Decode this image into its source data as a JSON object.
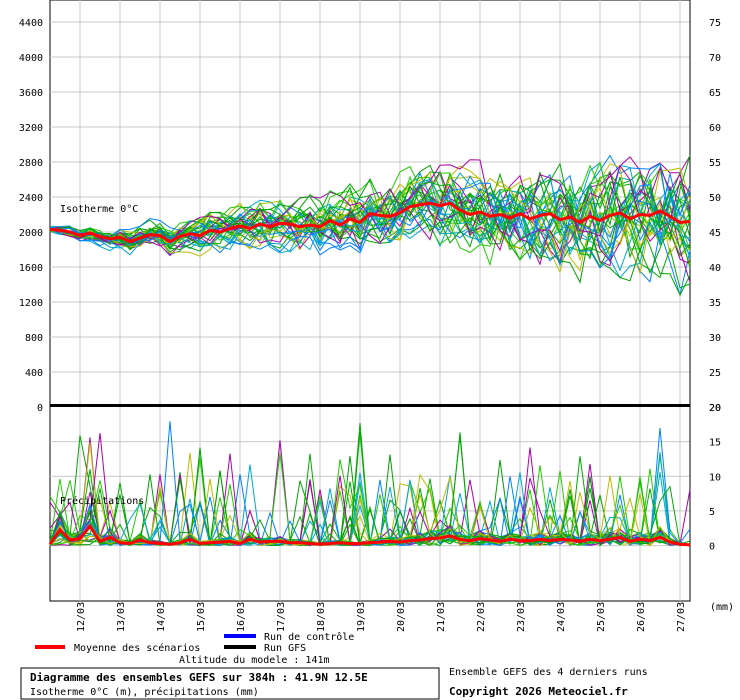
{
  "chart_data": {
    "type": "line",
    "panels": [
      {
        "name": "isotherm",
        "label": "Isotherme 0°C",
        "ylim": [
          0,
          4400
        ],
        "yticks": [
          0,
          400,
          800,
          1200,
          1600,
          2000,
          2400,
          2800,
          3200,
          3600,
          4000,
          4400
        ],
        "right_ticks": [
          20,
          25,
          30,
          35,
          40,
          45,
          50,
          55,
          60,
          65,
          70,
          75
        ],
        "mean_series": {
          "name": "Moyenne des scénarios",
          "color": "#ff0000",
          "x": [
            0,
            6,
            12,
            18,
            24,
            30,
            36,
            42,
            48,
            54,
            60,
            66,
            72,
            78,
            84,
            90,
            96,
            102,
            108,
            114,
            120,
            126,
            132,
            138,
            144,
            150,
            156,
            162,
            168,
            174,
            180,
            186,
            192,
            198,
            204,
            210,
            216,
            222,
            228,
            234,
            240,
            246,
            252,
            258,
            264,
            270,
            276,
            282,
            288,
            294,
            300,
            306,
            312,
            318,
            324,
            330,
            336,
            342,
            348,
            354,
            360,
            366,
            372,
            378,
            384
          ],
          "values": [
            2030,
            2020,
            2000,
            1960,
            1990,
            1950,
            1920,
            1940,
            1890,
            1930,
            1970,
            1960,
            1890,
            1950,
            1980,
            1960,
            2020,
            2000,
            2040,
            2070,
            2040,
            2090,
            2060,
            2100,
            2090,
            2060,
            2080,
            2060,
            2130,
            2080,
            2150,
            2110,
            2210,
            2190,
            2180,
            2220,
            2290,
            2310,
            2330,
            2300,
            2330,
            2250,
            2200,
            2230,
            2180,
            2200,
            2160,
            2210,
            2150,
            2190,
            2210,
            2140,
            2170,
            2110,
            2180,
            2130,
            2190,
            2220,
            2150,
            2200,
            2190,
            2240,
            2180,
            2110,
            2120
          ]
        }
      },
      {
        "name": "precipitation",
        "label": "Précipitations",
        "ylim": [
          -8,
          20
        ],
        "right_ticks": [
          0,
          5,
          10,
          15,
          20
        ],
        "right_unit": "(mm)",
        "mean_series": {
          "name": "Moyenne des scénarios",
          "color": "#ff0000",
          "x": [
            0,
            6,
            12,
            18,
            24,
            30,
            36,
            42,
            48,
            54,
            60,
            66,
            72,
            78,
            84,
            90,
            96,
            102,
            108,
            114,
            120,
            126,
            132,
            138,
            144,
            150,
            156,
            162,
            168,
            174,
            180,
            186,
            192,
            198,
            204,
            210,
            216,
            222,
            228,
            234,
            240,
            246,
            252,
            258,
            264,
            270,
            276,
            282,
            288,
            294,
            300,
            306,
            312,
            318,
            324,
            330,
            336,
            342,
            348,
            354,
            360,
            366,
            372,
            378,
            384
          ],
          "values": [
            0.2,
            2.3,
            0.8,
            1.0,
            2.8,
            0.6,
            1.2,
            0.4,
            0.3,
            0.8,
            0.4,
            0.3,
            0.2,
            0.4,
            0.9,
            0.3,
            0.4,
            0.5,
            0.6,
            0.3,
            0.9,
            0.5,
            0.6,
            0.6,
            0.4,
            0.4,
            0.3,
            0.2,
            0.3,
            0.4,
            0.3,
            0.3,
            0.4,
            0.5,
            0.6,
            0.5,
            0.7,
            0.8,
            1.0,
            1.1,
            1.4,
            0.9,
            0.7,
            1.0,
            0.8,
            0.6,
            0.9,
            0.7,
            0.7,
            0.9,
            0.7,
            0.9,
            0.8,
            0.6,
            0.9,
            0.7,
            0.9,
            1.2,
            0.6,
            0.9,
            0.7,
            1.2,
            0.5,
            0.2,
            0.1
          ]
        }
      }
    ],
    "x_unit": "hours from run start",
    "xlim": [
      0,
      384
    ],
    "date_labels": [
      "12/03",
      "13/03",
      "14/03",
      "15/03",
      "16/03",
      "17/03",
      "18/03",
      "19/03",
      "20/03",
      "21/03",
      "22/03",
      "23/03",
      "24/03",
      "25/03",
      "26/03",
      "27/03"
    ],
    "date_positions": [
      18,
      42,
      66,
      90,
      114,
      138,
      162,
      186,
      210,
      234,
      258,
      282,
      306,
      330,
      354,
      378
    ],
    "ensemble_colors": [
      "#00aa00",
      "#22cc00",
      "#00a000",
      "#bbbb00",
      "#aa00aa",
      "#00a8cc",
      "#0080ff"
    ],
    "legend": [
      {
        "label": "Moyenne des scénarios",
        "color": "#ff0000"
      },
      {
        "label": "Run de contrôle",
        "color": "#0000ff"
      },
      {
        "label": "Run GFS",
        "color": "#000000"
      }
    ],
    "grid": true
  },
  "footer": {
    "altitude": "Altitude du modele : 141m",
    "title": "Diagramme des ensembles GEFS sur 384h : 41.9N 12.5E",
    "subtitle": "Isotherme 0°C (m), précipitations (mm)",
    "ensemble_note": "Ensemble GEFS des 4 derniers runs",
    "copyright": "Copyright 2026 Meteociel.fr"
  }
}
